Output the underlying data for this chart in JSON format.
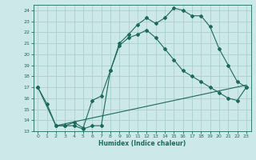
{
  "xlabel": "Humidex (Indice chaleur)",
  "xlim": [
    -0.5,
    23.5
  ],
  "ylim": [
    13,
    24.5
  ],
  "yticks": [
    13,
    14,
    15,
    16,
    17,
    18,
    19,
    20,
    21,
    22,
    23,
    24
  ],
  "xticks": [
    0,
    1,
    2,
    3,
    4,
    5,
    6,
    7,
    8,
    9,
    10,
    11,
    12,
    13,
    14,
    15,
    16,
    17,
    18,
    19,
    20,
    21,
    22,
    23
  ],
  "bg_color": "#cce8e8",
  "grid_color": "#aacece",
  "line_color": "#1a6b5a",
  "line1_x": [
    0,
    1,
    2,
    3,
    4,
    5,
    6,
    7,
    8,
    9,
    10,
    11,
    12,
    13,
    14,
    15,
    16,
    17,
    18,
    19,
    20,
    21,
    22,
    23
  ],
  "line1_y": [
    17.0,
    15.5,
    13.5,
    13.5,
    13.5,
    13.2,
    13.5,
    13.5,
    18.5,
    21.0,
    21.8,
    22.7,
    23.3,
    22.8,
    23.3,
    24.2,
    24.0,
    23.5,
    23.5,
    22.5,
    20.5,
    19.0,
    17.5,
    17.0
  ],
  "line2_x": [
    0,
    2,
    3,
    4,
    5,
    6,
    7,
    8,
    9,
    10,
    11,
    12,
    13,
    14,
    15,
    16,
    17,
    18,
    19,
    20,
    21,
    22,
    23
  ],
  "line2_y": [
    17.0,
    13.5,
    13.5,
    13.8,
    13.3,
    15.8,
    16.2,
    18.5,
    20.8,
    21.5,
    21.8,
    22.2,
    21.5,
    20.5,
    19.5,
    18.5,
    18.0,
    17.5,
    17.0,
    16.5,
    16.0,
    15.8,
    17.0
  ],
  "line3_x": [
    2,
    23
  ],
  "line3_y": [
    13.5,
    17.2
  ]
}
